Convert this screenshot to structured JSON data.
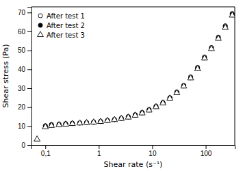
{
  "chart_data": {
    "type": "scatter",
    "xlabel": "Shear rate (s⁻¹)",
    "ylabel": "Shear stress (Pa)",
    "log": "x",
    "grid": false,
    "legend": "upper left",
    "xlim": [
      0.055,
      350
    ],
    "ylim": [
      0,
      73
    ],
    "xticks": [
      {
        "value": 0.1,
        "label": "0,1"
      },
      1,
      10,
      100
    ],
    "yticks": [
      0,
      10,
      20,
      30,
      40,
      50,
      60,
      70
    ],
    "x": [
      0.07,
      0.1,
      0.13,
      0.18,
      0.24,
      0.32,
      0.44,
      0.59,
      0.8,
      1.08,
      1.45,
      1.96,
      2.64,
      3.56,
      4.8,
      6.47,
      8.72,
      11.75,
      15.84,
      21.36,
      28.79,
      38.82,
      52.3,
      70.5,
      95.0,
      128.0,
      172.5,
      232.6,
      313.6
    ],
    "series": [
      {
        "name": "After test 1",
        "color": "black",
        "marker": "circle-open",
        "values": [
          null,
          10.2,
          10.8,
          11.0,
          11.3,
          11.5,
          11.7,
          11.9,
          12.2,
          12.5,
          13.0,
          13.5,
          14.2,
          15.0,
          16.0,
          17.2,
          18.7,
          20.5,
          22.5,
          25.0,
          28.0,
          31.5,
          36.0,
          41.0,
          46.5,
          51.5,
          57.0,
          63.0,
          69.5
        ]
      },
      {
        "name": "After test 2",
        "color": "black",
        "marker": "circle",
        "values": [
          null,
          9.8,
          10.5,
          10.8,
          11.1,
          11.4,
          11.6,
          11.8,
          12.0,
          12.4,
          12.9,
          13.4,
          14.0,
          14.8,
          15.8,
          17.0,
          18.5,
          20.3,
          22.3,
          24.8,
          27.7,
          31.2,
          35.5,
          40.5,
          46.0,
          51.0,
          56.5,
          62.5,
          69.0
        ]
      },
      {
        "name": "After test 3",
        "color": "black",
        "marker": "triangle-open",
        "values": [
          3.0,
          9.5,
          10.2,
          10.6,
          10.9,
          11.2,
          11.5,
          11.7,
          12.0,
          12.3,
          12.8,
          13.3,
          13.9,
          14.6,
          15.6,
          16.8,
          18.3,
          20.1,
          22.1,
          24.6,
          27.5,
          31.0,
          35.3,
          40.2,
          45.8,
          50.8,
          56.2,
          62.0,
          68.5
        ]
      }
    ]
  }
}
